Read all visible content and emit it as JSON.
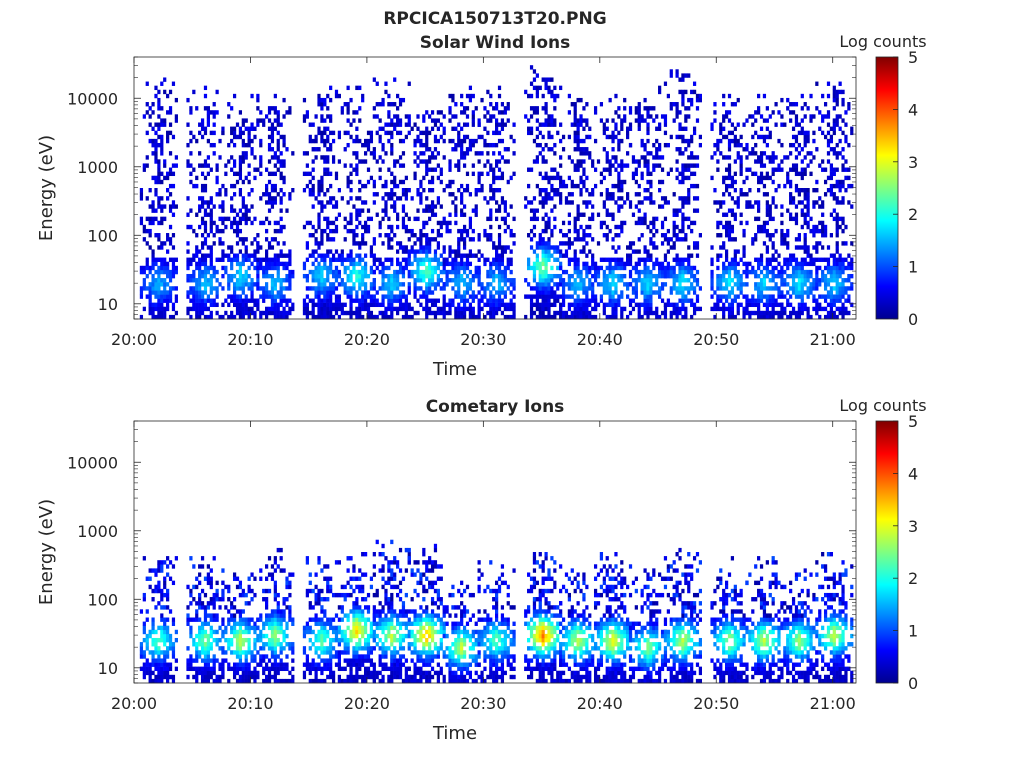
{
  "figure_title": "RPCICA150713T20.PNG",
  "colors": {
    "axis": "#262626",
    "colormap": [
      "#00008f",
      "#0000ff",
      "#0080ff",
      "#00ffff",
      "#80ff80",
      "#ffff00",
      "#ff8000",
      "#ff0000",
      "#800000"
    ]
  },
  "chart_data": [
    {
      "type": "heatmap",
      "title": "Solar Wind Ions",
      "xlabel": "Time",
      "ylabel": "Energy (eV)",
      "y_scale": "log",
      "xlim": [
        "20:00",
        "21:02"
      ],
      "ylim": [
        6,
        40000
      ],
      "x_ticks": [
        "20:00",
        "20:10",
        "20:20",
        "20:30",
        "20:40",
        "20:50",
        "21:00"
      ],
      "y_ticks": [
        10,
        100,
        1000,
        10000
      ],
      "y_tick_labels": [
        "10",
        "100",
        "1000",
        "10000"
      ],
      "colorbar": {
        "label": "Log counts",
        "range": [
          0,
          5
        ],
        "ticks": [
          0,
          1,
          2,
          3,
          4,
          5
        ]
      },
      "sweep_times": [
        "20:02",
        "20:06",
        "20:09",
        "20:12",
        "20:16",
        "20:19",
        "20:22",
        "20:25",
        "20:28",
        "20:31",
        "20:35",
        "20:38",
        "20:41",
        "20:44",
        "20:47",
        "20:51",
        "20:54",
        "20:57",
        "21:00"
      ],
      "sweep_emax_eV": [
        20000,
        15000,
        12000,
        12000,
        15000,
        15000,
        20000,
        12000,
        15000,
        15000,
        30000,
        12000,
        12000,
        15000,
        30000,
        12000,
        12000,
        12000,
        20000
      ],
      "peak_energy_eV": [
        20,
        20,
        25,
        20,
        25,
        25,
        20,
        30,
        20,
        20,
        35,
        20,
        20,
        20,
        20,
        20,
        20,
        20,
        20
      ],
      "peak_log_counts": [
        1.2,
        1.3,
        1.5,
        1.3,
        1.4,
        1.8,
        1.4,
        2.0,
        1.3,
        1.3,
        2.2,
        1.3,
        1.5,
        1.4,
        1.5,
        1.5,
        1.4,
        1.5,
        1.4
      ]
    },
    {
      "type": "heatmap",
      "title": "Cometary Ions",
      "xlabel": "Time",
      "ylabel": "Energy (eV)",
      "y_scale": "log",
      "xlim": [
        "20:00",
        "21:02"
      ],
      "ylim": [
        6,
        40000
      ],
      "x_ticks": [
        "20:00",
        "20:10",
        "20:20",
        "20:30",
        "20:40",
        "20:50",
        "21:00"
      ],
      "y_ticks": [
        10,
        100,
        1000,
        10000
      ],
      "y_tick_labels": [
        "10",
        "100",
        "1000",
        "10000"
      ],
      "colorbar": {
        "label": "Log counts",
        "range": [
          0,
          5
        ],
        "ticks": [
          0,
          1,
          2,
          3,
          4,
          5
        ]
      },
      "sweep_times": [
        "20:02",
        "20:06",
        "20:09",
        "20:12",
        "20:16",
        "20:19",
        "20:22",
        "20:25",
        "20:28",
        "20:31",
        "20:35",
        "20:38",
        "20:41",
        "20:44",
        "20:47",
        "20:51",
        "20:54",
        "20:57",
        "21:00"
      ],
      "sweep_emax_eV": [
        600,
        500,
        300,
        600,
        400,
        500,
        700,
        700,
        200,
        400,
        500,
        300,
        500,
        300,
        600,
        400,
        400,
        300,
        500
      ],
      "peak_energy_eV": [
        25,
        25,
        25,
        30,
        25,
        35,
        30,
        30,
        20,
        25,
        30,
        25,
        25,
        20,
        25,
        25,
        25,
        25,
        30
      ],
      "peak_log_counts": [
        2.0,
        2.2,
        2.5,
        2.3,
        2.0,
        3.0,
        2.5,
        3.2,
        2.5,
        2.0,
        3.5,
        2.5,
        2.8,
        2.2,
        2.5,
        2.3,
        2.5,
        2.3,
        2.5
      ]
    }
  ]
}
